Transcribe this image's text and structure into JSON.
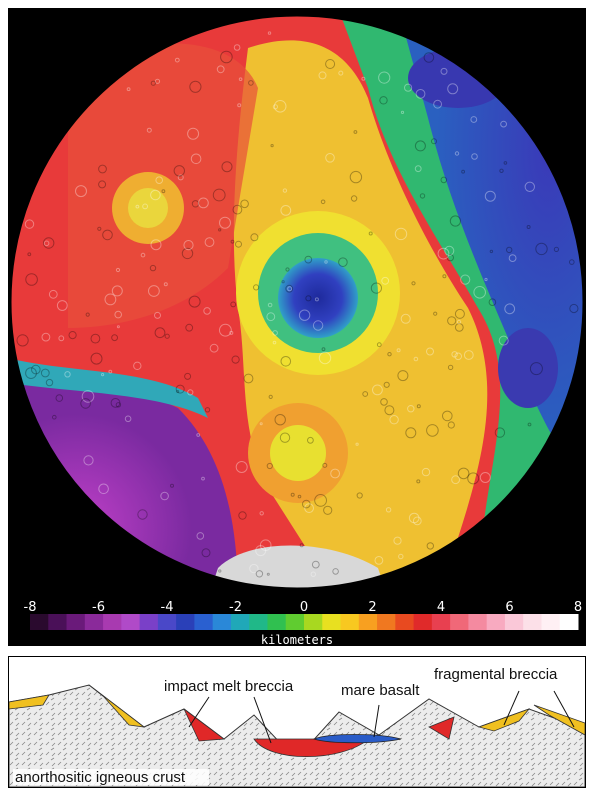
{
  "topography_map": {
    "colors": {
      "background": "#000000",
      "basin_floor": "#2a2aa8",
      "highlands": "#e83a3a",
      "crater_ring": "#f0e030",
      "lowlands": "#8a2aa8",
      "south_pole_shadow": "#d8d8d8"
    }
  },
  "color_scale": {
    "ticks": [
      "-8",
      "-6",
      "-4",
      "-2",
      "0",
      "2",
      "4",
      "6",
      "8"
    ],
    "unit": "kilometers",
    "colors": [
      "#2a0a2e",
      "#4a1058",
      "#6a1a7a",
      "#8a2a9a",
      "#a83ab0",
      "#b04ac8",
      "#7a40c8",
      "#4a48c8",
      "#2a40b8",
      "#2a60d0",
      "#2a88d8",
      "#20a8b8",
      "#20b888",
      "#30c050",
      "#60cc30",
      "#a8d820",
      "#e8e020",
      "#f8c820",
      "#f8a020",
      "#f07820",
      "#e84a20",
      "#e02a2a",
      "#e84050",
      "#f06878",
      "#f48aa0",
      "#f8aac0",
      "#fac8d8",
      "#fce0e8",
      "#fff0f4",
      "#ffffff"
    ]
  },
  "cross_section": {
    "labels": {
      "impact_melt": "impact melt breccia",
      "mare_basalt": "mare basalt",
      "fragmental": "fragmental breccia",
      "crust": "anorthositic igneous crust"
    },
    "colors": {
      "melt": "#e02828",
      "basalt": "#2a5cc8",
      "fragmental": "#f0c020",
      "crust_fill": "#e4e4e4"
    }
  }
}
